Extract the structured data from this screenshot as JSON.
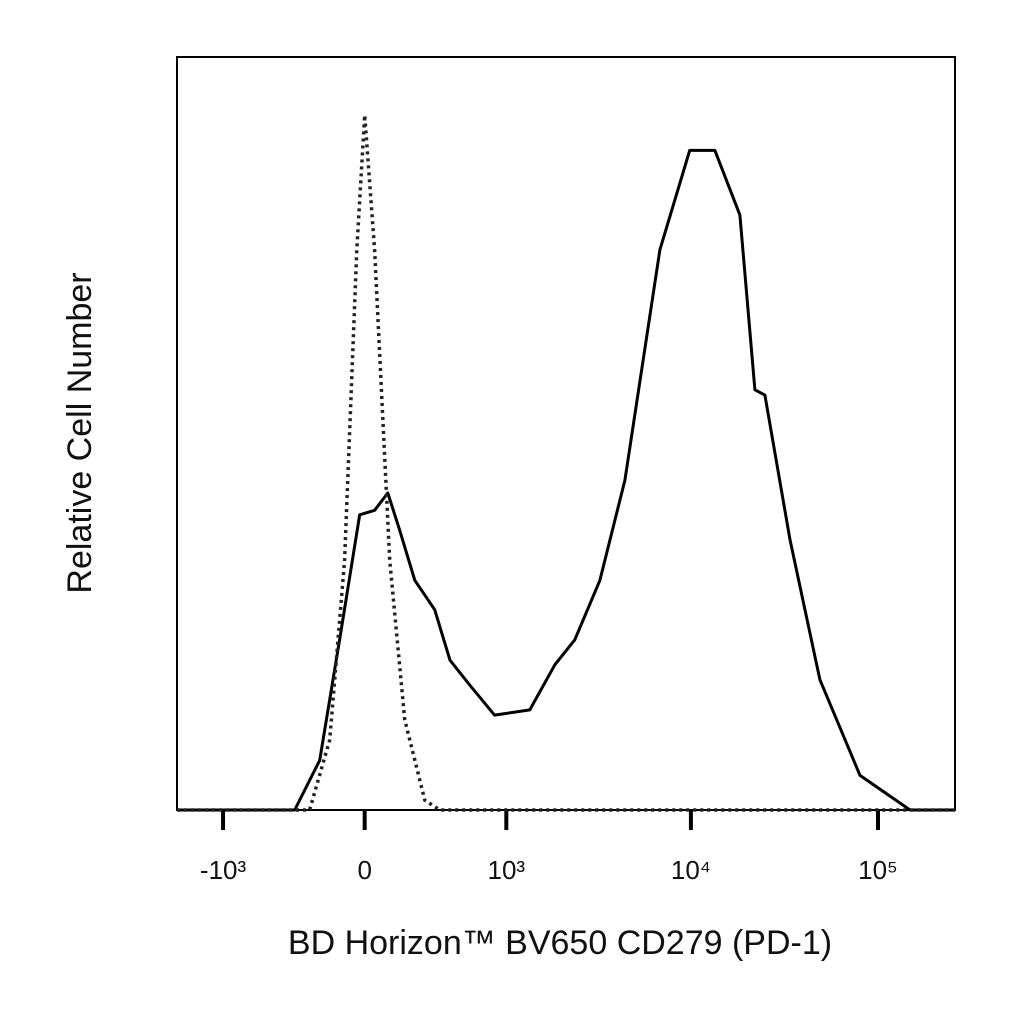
{
  "chart_data": {
    "type": "line",
    "xlabel": "BD Horizon™ BV650 CD279 (PD-1)",
    "ylabel": "Relative Cell Number",
    "xscale": "biexponential",
    "xlim": [
      -1800,
      258000
    ],
    "ylim": [
      0,
      100
    ],
    "xticks": [
      {
        "value": -1000,
        "label": "-10³"
      },
      0,
      {
        "value": 1000,
        "label": "10³"
      },
      {
        "value": 10000,
        "label": "10⁴"
      },
      {
        "value": 100000,
        "label": "10⁵"
      }
    ],
    "series": [
      {
        "color": "#000000",
        "style": "solid",
        "x": [
          -1800,
          -351,
          -210,
          -113,
          -22,
          44,
          104,
          160,
          237,
          351,
          453,
          608,
          855,
          1354,
          1859,
          2383,
          3253,
          4433,
          6823,
          9855,
          13430,
          18270,
          21980,
          24870,
          33860,
          48950,
          80100,
          148400,
          258000
        ],
        "values": [
          0,
          0,
          6.6,
          22.6,
          39.2,
          39.8,
          42.1,
          37.2,
          30.5,
          26.6,
          19.9,
          16.6,
          12.6,
          13.3,
          19.3,
          22.6,
          30.5,
          43.8,
          74.4,
          87.6,
          87.6,
          79.0,
          55.8,
          55.1,
          35.9,
          17.3,
          4.6,
          0,
          0
        ]
      },
      {
        "color": "#222222",
        "style": "dotted",
        "x": [
          -1800,
          -264,
          -160,
          -90,
          -35,
          0,
          44,
          113,
          185,
          292,
          384,
          258000
        ],
        "values": [
          0,
          0,
          9.3,
          33.2,
          74.4,
          92.3,
          74.4,
          33.2,
          12.0,
          1.3,
          0,
          0
        ]
      }
    ]
  }
}
